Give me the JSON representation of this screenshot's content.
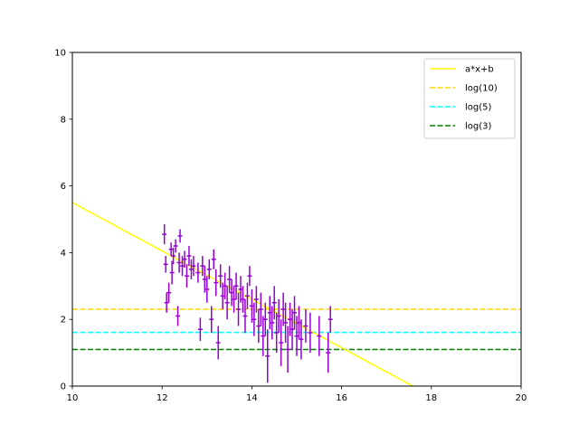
{
  "chart_data": {
    "type": "scatter",
    "xlim": [
      10,
      20
    ],
    "ylim": [
      0,
      10
    ],
    "x_ticks": [
      10,
      12,
      14,
      16,
      18,
      20
    ],
    "y_ticks": [
      0,
      2,
      4,
      6,
      8,
      10
    ],
    "xlabel": "",
    "ylabel": "",
    "grid": false,
    "legend": {
      "position": "top-right",
      "entries": [
        {
          "label": "a*x+b",
          "color": "#ffff00",
          "style": "solid"
        },
        {
          "label": "log(10)",
          "color": "#ffd700",
          "style": "dashed"
        },
        {
          "label": "log(5)",
          "color": "#00ffff",
          "style": "dashed"
        },
        {
          "label": "log(3)",
          "color": "#008000",
          "style": "dashed"
        }
      ]
    },
    "fit_line": {
      "label": "a*x+b",
      "slope": -0.725,
      "intercept": 12.75,
      "color": "#ffff00"
    },
    "hlines": [
      {
        "label": "log(10)",
        "y": 2.302585,
        "color": "#ffd700"
      },
      {
        "label": "log(5)",
        "y": 1.609438,
        "color": "#00ffff"
      },
      {
        "label": "log(3)",
        "y": 1.098612,
        "color": "#008000"
      }
    ],
    "scatter": {
      "color": "#9400d3",
      "x_error": 0.05,
      "points": [
        [
          12.05,
          4.55,
          0.3
        ],
        [
          12.08,
          3.65,
          0.25
        ],
        [
          12.1,
          2.5,
          0.3
        ],
        [
          12.15,
          2.8,
          0.3
        ],
        [
          12.2,
          4.1,
          0.2
        ],
        [
          12.22,
          3.4,
          0.35
        ],
        [
          12.25,
          3.9,
          0.25
        ],
        [
          12.3,
          4.2,
          0.2
        ],
        [
          12.35,
          2.1,
          0.3
        ],
        [
          12.38,
          3.7,
          0.3
        ],
        [
          12.4,
          4.5,
          0.2
        ],
        [
          12.45,
          3.6,
          0.3
        ],
        [
          12.5,
          3.8,
          0.25
        ],
        [
          12.55,
          3.3,
          0.35
        ],
        [
          12.6,
          3.9,
          0.3
        ],
        [
          12.65,
          3.5,
          0.3
        ],
        [
          12.7,
          3.6,
          0.3
        ],
        [
          12.8,
          3.4,
          0.3
        ],
        [
          12.85,
          1.7,
          0.35
        ],
        [
          12.9,
          3.6,
          0.3
        ],
        [
          12.95,
          3.2,
          0.4
        ],
        [
          13.0,
          2.9,
          0.4
        ],
        [
          13.05,
          3.5,
          0.3
        ],
        [
          13.1,
          2.0,
          0.4
        ],
        [
          13.15,
          3.8,
          0.3
        ],
        [
          13.2,
          3.1,
          0.4
        ],
        [
          13.25,
          1.3,
          0.5
        ],
        [
          13.3,
          3.3,
          0.35
        ],
        [
          13.35,
          2.7,
          0.4
        ],
        [
          13.4,
          3.0,
          0.4
        ],
        [
          13.45,
          2.5,
          0.5
        ],
        [
          13.5,
          3.2,
          0.4
        ],
        [
          13.55,
          2.8,
          0.4
        ],
        [
          13.6,
          2.6,
          0.4
        ],
        [
          13.65,
          3.0,
          0.4
        ],
        [
          13.7,
          2.3,
          0.5
        ],
        [
          13.75,
          2.9,
          0.4
        ],
        [
          13.8,
          2.6,
          0.4
        ],
        [
          13.85,
          2.1,
          0.5
        ],
        [
          13.9,
          2.7,
          0.4
        ],
        [
          13.95,
          3.3,
          0.3
        ],
        [
          14.0,
          2.4,
          0.5
        ],
        [
          14.05,
          2.0,
          0.5
        ],
        [
          14.1,
          2.6,
          0.4
        ],
        [
          14.15,
          1.8,
          0.5
        ],
        [
          14.2,
          2.3,
          0.5
        ],
        [
          14.25,
          1.5,
          0.6
        ],
        [
          14.3,
          2.0,
          0.5
        ],
        [
          14.35,
          0.9,
          0.8
        ],
        [
          14.4,
          2.2,
          0.5
        ],
        [
          14.45,
          1.9,
          0.5
        ],
        [
          14.5,
          2.5,
          0.5
        ],
        [
          14.55,
          1.6,
          0.6
        ],
        [
          14.6,
          2.1,
          0.5
        ],
        [
          14.65,
          1.3,
          0.7
        ],
        [
          14.7,
          2.3,
          0.5
        ],
        [
          14.75,
          1.9,
          0.6
        ],
        [
          14.8,
          1.1,
          0.7
        ],
        [
          14.85,
          2.0,
          0.5
        ],
        [
          14.9,
          1.7,
          0.6
        ],
        [
          14.95,
          2.2,
          0.5
        ],
        [
          15.0,
          1.5,
          0.6
        ],
        [
          15.05,
          1.9,
          0.5
        ],
        [
          15.1,
          1.4,
          0.6
        ],
        [
          15.2,
          1.8,
          0.5
        ],
        [
          15.3,
          1.6,
          0.6
        ],
        [
          15.5,
          1.5,
          0.6
        ],
        [
          15.7,
          1.0,
          0.6
        ],
        [
          15.75,
          2.0,
          0.4
        ]
      ]
    }
  }
}
